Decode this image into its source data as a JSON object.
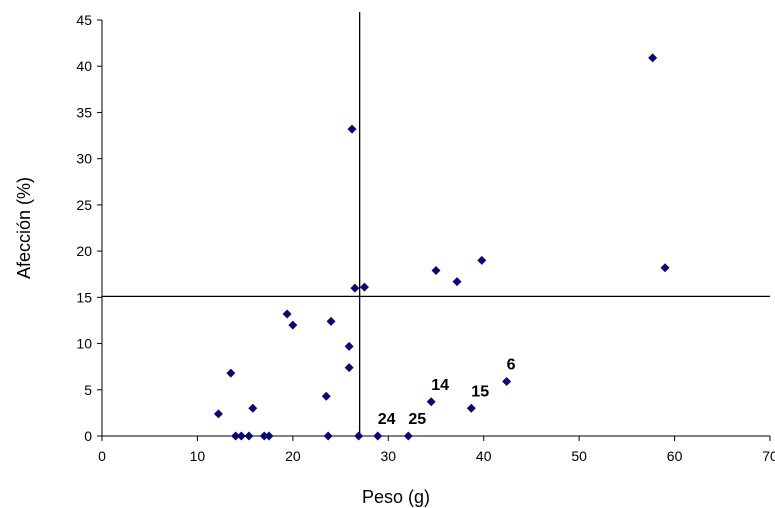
{
  "chart_data": {
    "type": "scatter",
    "title": "",
    "xlabel": "Peso (g)",
    "ylabel": "Afección (%)",
    "xlim": [
      0,
      70
    ],
    "ylim": [
      0,
      45
    ],
    "xticks": [
      0,
      10,
      20,
      30,
      40,
      50,
      60,
      70
    ],
    "yticks": [
      0,
      5,
      10,
      15,
      20,
      25,
      30,
      35,
      40,
      45
    ],
    "grid": false,
    "marker": "diamond",
    "marker_color": "#0a0a6e",
    "reference_lines": {
      "vertical_x": 27.0,
      "horizontal_y": 15.1
    },
    "points": [
      {
        "x": 12.2,
        "y": 2.4
      },
      {
        "x": 13.5,
        "y": 6.8
      },
      {
        "x": 14.0,
        "y": 0
      },
      {
        "x": 14.6,
        "y": 0
      },
      {
        "x": 15.4,
        "y": 0
      },
      {
        "x": 15.8,
        "y": 3.0
      },
      {
        "x": 17.0,
        "y": 0
      },
      {
        "x": 17.5,
        "y": 0
      },
      {
        "x": 19.4,
        "y": 13.2
      },
      {
        "x": 20.0,
        "y": 12.0
      },
      {
        "x": 23.5,
        "y": 4.3
      },
      {
        "x": 23.7,
        "y": 0
      },
      {
        "x": 24.0,
        "y": 12.4
      },
      {
        "x": 25.9,
        "y": 7.4
      },
      {
        "x": 25.9,
        "y": 9.7
      },
      {
        "x": 26.2,
        "y": 33.2
      },
      {
        "x": 26.5,
        "y": 16.0
      },
      {
        "x": 26.9,
        "y": 0
      },
      {
        "x": 27.5,
        "y": 16.1
      },
      {
        "x": 28.9,
        "y": 0,
        "label": "24"
      },
      {
        "x": 32.1,
        "y": 0,
        "label": "25"
      },
      {
        "x": 34.5,
        "y": 3.7,
        "label": "14"
      },
      {
        "x": 35.0,
        "y": 17.9
      },
      {
        "x": 37.2,
        "y": 16.7
      },
      {
        "x": 38.7,
        "y": 3.0,
        "label": "15"
      },
      {
        "x": 39.8,
        "y": 19.0
      },
      {
        "x": 42.4,
        "y": 5.9,
        "label": "6"
      },
      {
        "x": 57.7,
        "y": 40.9
      },
      {
        "x": 59.0,
        "y": 18.2
      }
    ]
  }
}
